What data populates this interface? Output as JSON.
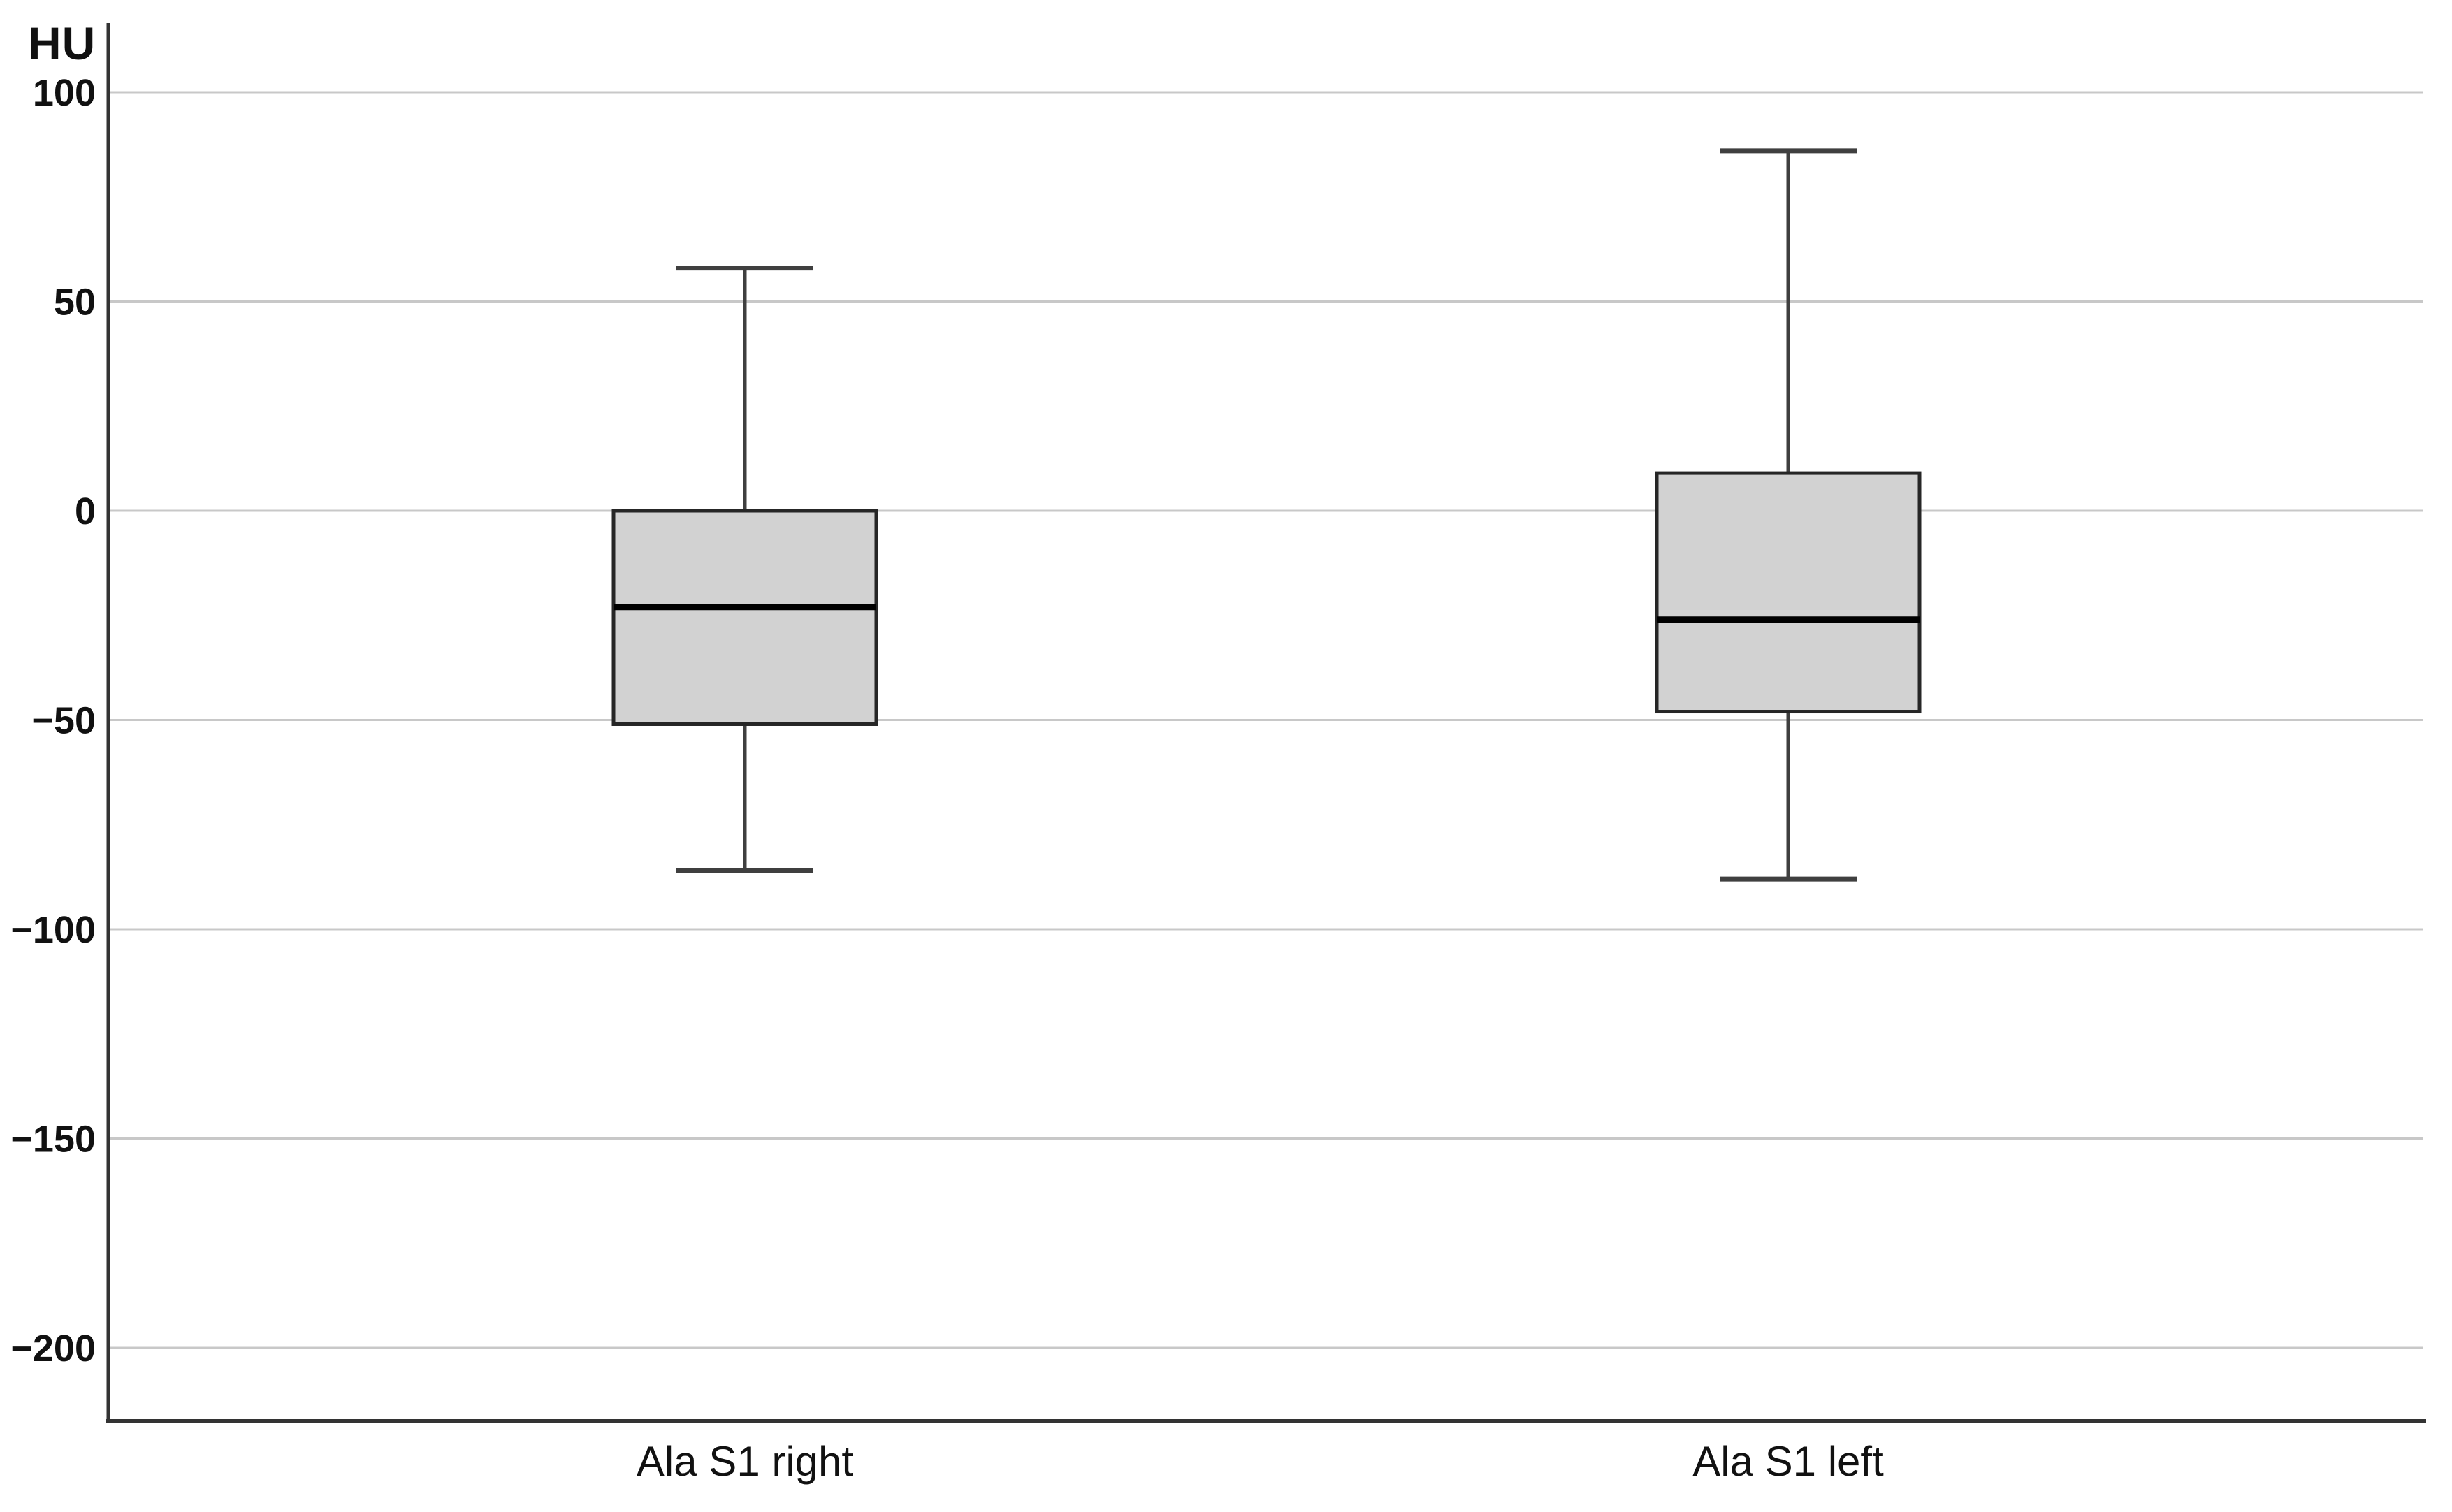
{
  "chart_data": {
    "type": "boxplot",
    "title": "",
    "ylabel": "HU",
    "xlabel": "",
    "categories": [
      "Ala S1 right",
      "Ala S1 left"
    ],
    "y_ticks": [
      100,
      50,
      0,
      -50,
      -100,
      -150,
      -200
    ],
    "ylim": [
      -217,
      117
    ],
    "grid": "horizontal",
    "legend": "none",
    "series": [
      {
        "name": "Ala S1 right",
        "whisker_low": -86,
        "q1": -51,
        "median": -23,
        "q3": 0,
        "whisker_high": 58
      },
      {
        "name": "Ala S1 left",
        "whisker_low": -88,
        "q1": -48,
        "median": -26,
        "q3": 9,
        "whisker_high": 86
      }
    ],
    "colors": {
      "background": "#ffffff",
      "box_fill": "#d2d2d2",
      "box_border": "#262626",
      "median": "#000000",
      "whisker": "#3f3f3f",
      "gridline": "#c8c8c8",
      "axis": "#333333",
      "text": "#111111"
    }
  }
}
